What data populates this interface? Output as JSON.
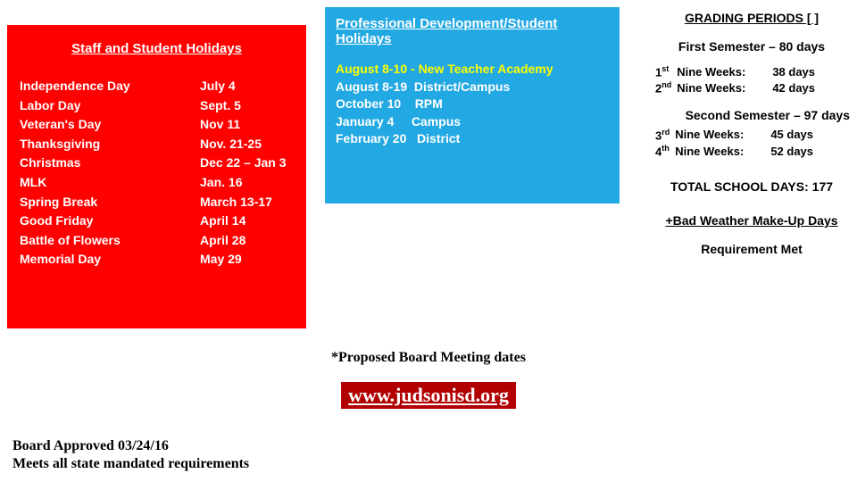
{
  "redBox": {
    "title": "Staff and Student Holidays",
    "bgColor": "#ff0000",
    "textColor": "#ffffff",
    "holidays": [
      {
        "name": "Independence Day",
        "date": "July 4"
      },
      {
        "name": "Labor Day",
        "date": "Sept. 5"
      },
      {
        "name": "Veteran's Day",
        "date": "Nov 11"
      },
      {
        "name": "Thanksgiving",
        "date": "Nov. 21-25"
      },
      {
        "name": "Christmas",
        "date": "Dec 22 – Jan 3"
      },
      {
        "name": " MLK",
        "date": "Jan. 16"
      },
      {
        "name": "Spring Break",
        "date": "March 13-17"
      },
      {
        "name": "Good Friday",
        "date": "April 14"
      },
      {
        "name": "Battle of Flowers",
        "date": "April 28"
      },
      {
        "name": "Memorial Day",
        "date": "May 29"
      }
    ]
  },
  "blueBox": {
    "title": "Professional Development/Student Holidays",
    "bgColor": "#22a8e2",
    "textColor": "#ffffff",
    "highlightColor": "#ffff00",
    "highlightLine": "August 8-10 - New Teacher Academy",
    "lines": [
      "August 8-19  District/Campus",
      "October 10    RPM",
      "January 4     Campus",
      "February 20   District"
    ]
  },
  "grading": {
    "title": "GRADING PERIODS [ ]",
    "sem1": {
      "header": "First Semester – 80 days",
      "rows": [
        {
          "ord": "1",
          "sup": "st",
          "label": "Nine  Weeks:",
          "days": "38 days"
        },
        {
          "ord": "2",
          "sup": "nd",
          "label": "Nine  Weeks:",
          "days": "42 days"
        }
      ]
    },
    "sem2": {
      "header": "Second Semester – 97 days",
      "rows": [
        {
          "ord": "3",
          "sup": "rd",
          "label": "Nine  Weeks:",
          "days": "45 days"
        },
        {
          "ord": "4",
          "sup": "th",
          "label": "Nine  Weeks:",
          "days": "52 days"
        }
      ]
    },
    "total": "TOTAL SCHOOL DAYS:  177",
    "makeup": "+Bad Weather Make-Up Days",
    "reqMet": "Requirement Met"
  },
  "footer": {
    "proposed": "*Proposed Board Meeting dates",
    "url": "www.judsonisd.org",
    "urlBg": "#b20000",
    "approved": "Board Approved 03/24/16",
    "mandated": "Meets all state mandated requirements"
  }
}
